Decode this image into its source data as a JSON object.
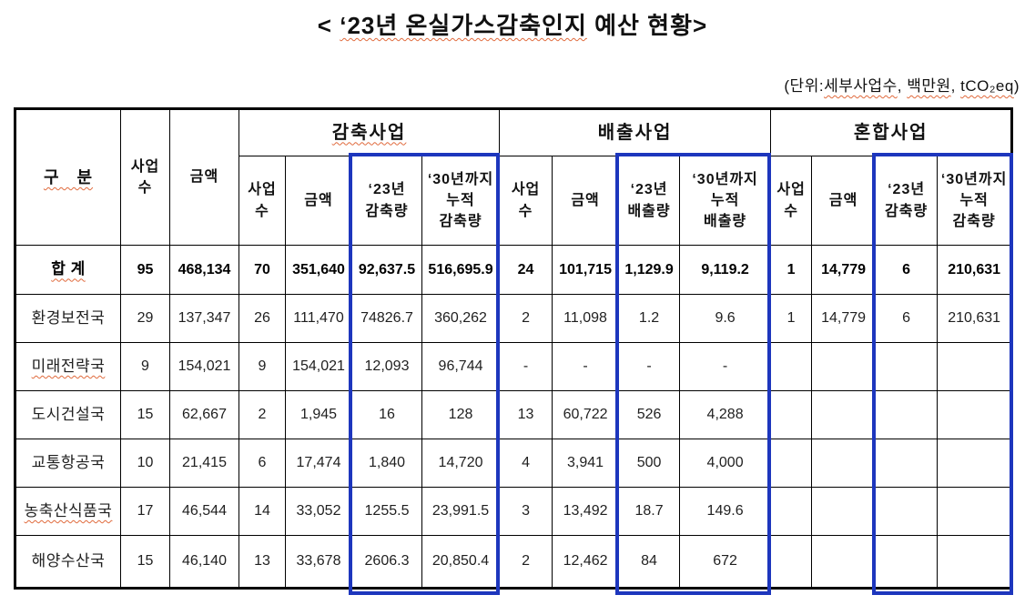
{
  "title": {
    "prefix": "< ",
    "highlight": "‘23년 온실가스감축인지",
    "suffix": " 예산 현황>"
  },
  "unit_note": {
    "prefix": "(단위:",
    "unit1": "세부사업수",
    "sep1": ", ",
    "unit2": "백만원",
    "sep2": ", ",
    "unit3": "tCO₂eq",
    "suffix": ")"
  },
  "table": {
    "corner_label": "구　분",
    "base_columns": {
      "count": "사업\n수",
      "amount": "금액"
    },
    "groups": [
      {
        "name": "감축사업",
        "columns": [
          "사업\n수",
          "금액",
          "‘23년\n감축량",
          "‘30년까지\n누적\n감축량"
        ]
      },
      {
        "name": "배출사업",
        "columns": [
          "사업\n수",
          "금액",
          "‘23년\n배출량",
          "‘30년까지\n누적\n배출량"
        ]
      },
      {
        "name": "혼합사업",
        "columns": [
          "사업\n수",
          "금액",
          "‘23년\n감축량",
          "‘30년까지\n누적\n감축량"
        ]
      }
    ],
    "rows": [
      {
        "label": "합 계",
        "bold": true,
        "squiggle": true,
        "values": [
          "95",
          "468,134",
          "70",
          "351,640",
          "92,637.5",
          "516,695.9",
          "24",
          "101,715",
          "1,129.9",
          "9,119.2",
          "1",
          "14,779",
          "6",
          "210,631"
        ]
      },
      {
        "label": "환경보전국",
        "bold": false,
        "squiggle": false,
        "values": [
          "29",
          "137,347",
          "26",
          "111,470",
          "74826.7",
          "360,262",
          "2",
          "11,098",
          "1.2",
          "9.6",
          "1",
          "14,779",
          "6",
          "210,631"
        ]
      },
      {
        "label": "미래전략국",
        "bold": false,
        "squiggle": true,
        "values": [
          "9",
          "154,021",
          "9",
          "154,021",
          "12,093",
          "96,744",
          "-",
          "-",
          "-",
          "-",
          "",
          "",
          "",
          ""
        ]
      },
      {
        "label": "도시건설국",
        "bold": false,
        "squiggle": false,
        "values": [
          "15",
          "62,667",
          "2",
          "1,945",
          "16",
          "128",
          "13",
          "60,722",
          "526",
          "4,288",
          "",
          "",
          "",
          ""
        ]
      },
      {
        "label": "교통항공국",
        "bold": false,
        "squiggle": false,
        "values": [
          "10",
          "21,415",
          "6",
          "17,474",
          "1,840",
          "14,720",
          "4",
          "3,941",
          "500",
          "4,000",
          "",
          "",
          "",
          ""
        ]
      },
      {
        "label": "농축산식품국",
        "bold": false,
        "squiggle": true,
        "values": [
          "17",
          "46,544",
          "14",
          "33,052",
          "1255.5",
          "23,991.5",
          "3",
          "13,492",
          "18.7",
          "149.6",
          "",
          "",
          "",
          ""
        ]
      },
      {
        "label": "해양수산국",
        "bold": false,
        "squiggle": false,
        "values": [
          "15",
          "46,140",
          "13",
          "33,678",
          "2606.3",
          "20,850.4",
          "2",
          "12,462",
          "84",
          "672",
          "",
          "",
          "",
          ""
        ]
      }
    ],
    "highlight_color": "#1d36bd"
  }
}
